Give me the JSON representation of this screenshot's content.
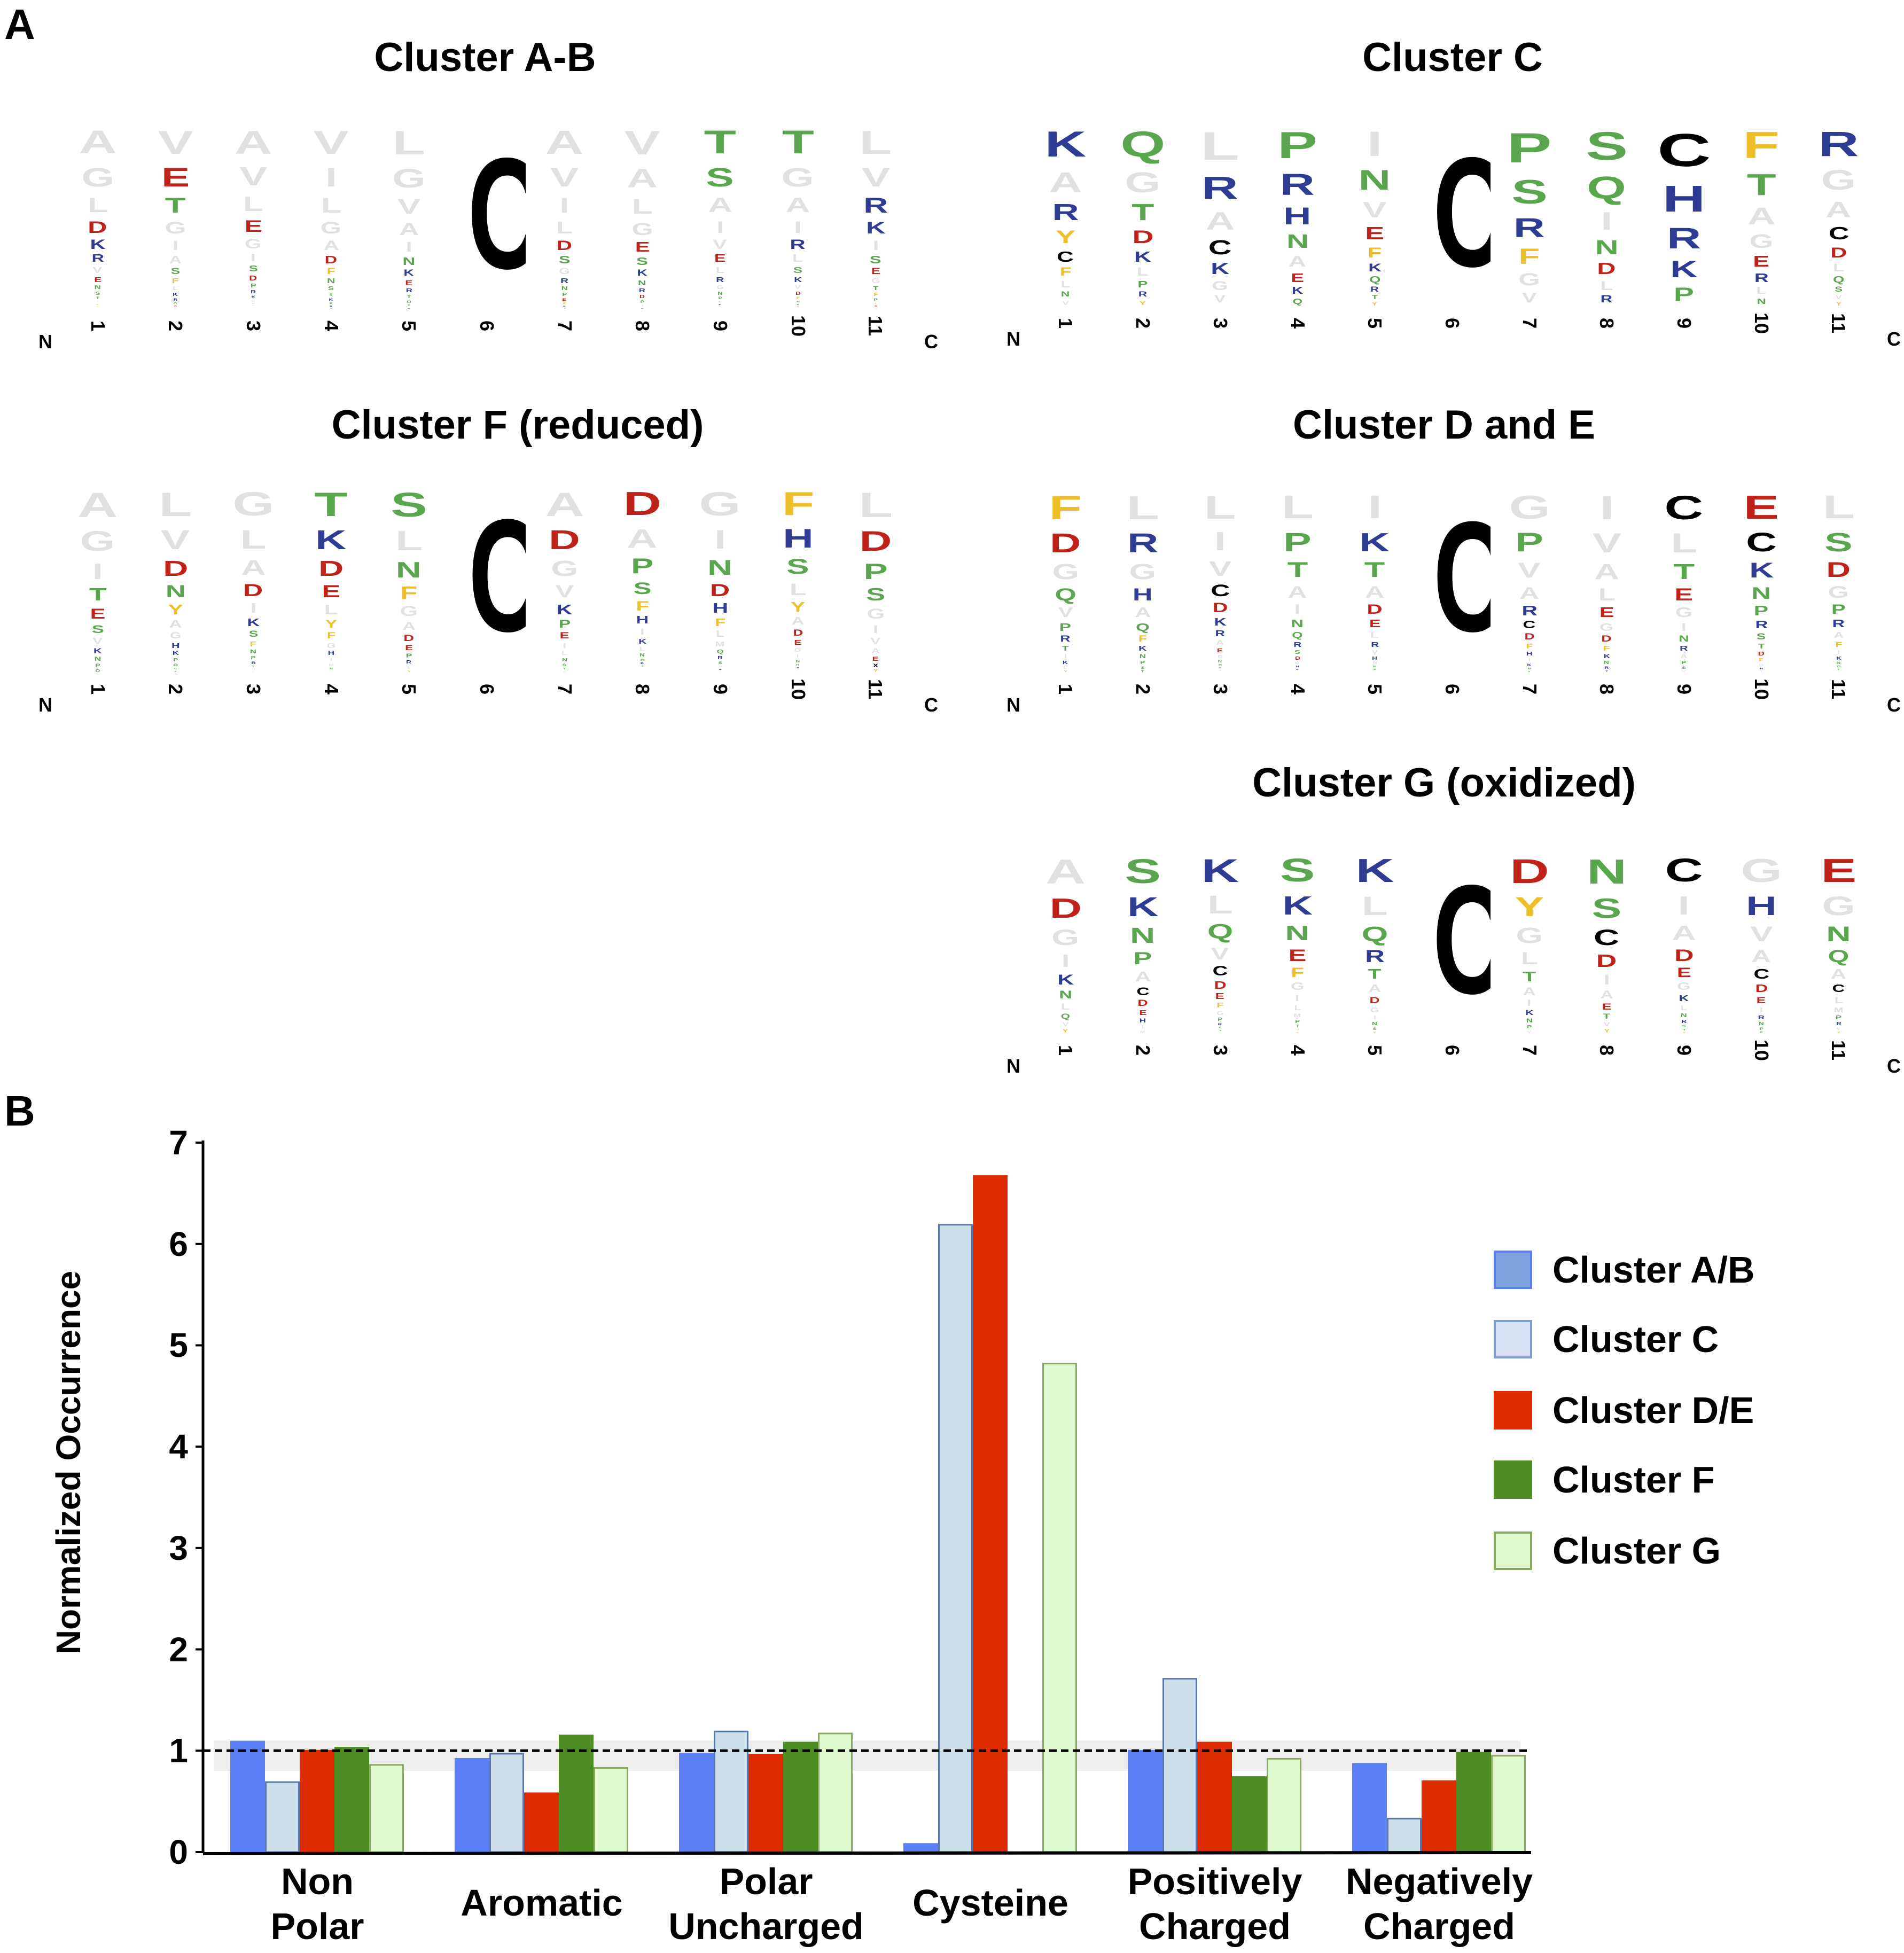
{
  "panel_a_label": "A",
  "panel_b_label": "B",
  "logo_axis": {
    "n_label": "N",
    "c_label": "C",
    "positions": [
      "1",
      "2",
      "3",
      "4",
      "5",
      "6",
      "7",
      "8",
      "9",
      "10",
      "11"
    ]
  },
  "logos": [
    {
      "id": "ab",
      "title": "Cluster A-B",
      "columns": [
        "AGLDKRVENSTIYFP",
        "VETGIASFLKRQDN",
        "AVLEGISDPRKGNFTY",
        "VILGADFNSTKPRE",
        "LGVAINKERTQSD",
        "C",
        "AVILDSGRNPEFKT",
        "VALGESKNRDPIT",
        "TSAIVELRGNPFKYD",
        "TGAIRLSKVDFNPEH",
        "LVRKISEGTFPADN"
      ]
    },
    {
      "id": "c",
      "title": "Cluster C",
      "columns": [
        "KARYCFLNV",
        "QGTDKLPRY",
        "LRACKGV",
        "PRHNAEKQ",
        "INVEFKQRTY",
        "C",
        "PSRFGV",
        "SQINDLR",
        "CHRKP",
        "FTAGERLN",
        "RGACDLQSVY"
      ]
    },
    {
      "id": "f",
      "title": "Cluster F (reduced)",
      "columns": [
        "AGITESVKNPQ",
        "LVDNYAGHKPQST",
        "GLADIKSFNPRTVY",
        "TKDELYFGHIMNV",
        "SLNFGADEPRVY",
        "C",
        "ADGVKPEILNSTY",
        "DAPSFHIKLNQRTVXY",
        "GINDHFLMQRSVXY",
        "FHSLYADEGINQRVX",
        "LDPSGIVAEXY"
      ]
    },
    {
      "id": "de",
      "title": "Cluster D and E",
      "columns": [
        "FDGQVPRTIKLY",
        "LRGHAQFKNPST",
        "LIVCDKRAEGNQSTY",
        "LPTAINQRSDGHKV",
        "IKTADELRVHMNPY",
        "C",
        "GPVARCDFHIKNS",
        "IVALEGDFKNRT",
        "CLTEGINRAPSV",
        "ECKNPRSTDFGHI",
        "LSDGPRAFIKNQTY"
      ]
    },
    {
      "id": "g",
      "title": "Cluster G (oxidized)",
      "columns": [
        "ADGIKNLQVY",
        "SKNPACDEHIM",
        "KLQVCDEFGPRSTY",
        "SKNEFGILMPTVY",
        "KLQRTADGINSY",
        "C",
        "DYGLTAIKNPV",
        "NSCDIAETVY",
        "CIADEGKLNRSTY",
        "GHVACDEIRNPS",
        "EGNQACLMPRVY"
      ]
    }
  ],
  "residue_colors": {
    "polar": "#5aa64e",
    "basic": "#2e3c93",
    "acidic": "#c0221a",
    "aromatic": "#efbf2a",
    "cysteine": "#000000",
    "hydrophobic": "#e1e1e1"
  },
  "chart_data": {
    "type": "bar",
    "title": "",
    "xlabel": "",
    "ylabel": "Normalized Occurrence",
    "ylim": [
      0,
      7
    ],
    "yticks": [
      "0",
      "1",
      "2",
      "3",
      "4",
      "5",
      "6",
      "7"
    ],
    "reference_line": 1,
    "categories": [
      [
        "Non",
        "Polar"
      ],
      [
        "Aromatic"
      ],
      [
        "Polar",
        "Uncharged"
      ],
      [
        "Cysteine"
      ],
      [
        "Positively",
        "Charged"
      ],
      [
        "Negatively",
        "Charged"
      ]
    ],
    "legend_position": "right",
    "series": [
      {
        "name": "Cluster A/B",
        "color": "#5b7ff7",
        "legend_color": "#7ea2dc",
        "border": "#5b7ff7",
        "values": [
          1.09,
          0.92,
          0.97,
          0.08,
          1.0,
          0.87
        ]
      },
      {
        "name": "Cluster C",
        "color": "#cde0ea",
        "legend_color": "#d5e1f3",
        "border": "#5a79a8",
        "values": [
          0.69,
          0.97,
          1.19,
          6.19,
          1.71,
          0.33
        ]
      },
      {
        "name": "Cluster D/E",
        "color": "#dd2a00",
        "legend_color": "#dd2a00",
        "border": "#dd2a00",
        "values": [
          1.0,
          0.58,
          0.96,
          6.67,
          1.08,
          0.7
        ]
      },
      {
        "name": "Cluster F",
        "color": "#4d8c22",
        "legend_color": "#4d8c22",
        "border": "#4d8c22",
        "values": [
          1.03,
          1.15,
          1.08,
          0,
          0.74,
          0.98
        ]
      },
      {
        "name": "Cluster G",
        "color": "#e0fad0",
        "legend_color": "#e0fad0",
        "border": "#8aa860",
        "values": [
          0.86,
          0.83,
          1.17,
          4.82,
          0.92,
          0.95
        ]
      }
    ]
  }
}
